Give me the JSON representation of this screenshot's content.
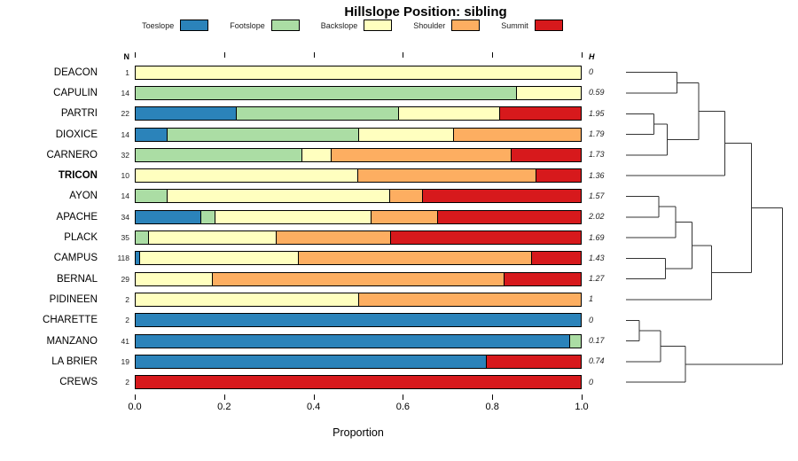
{
  "chart_data": {
    "type": "bar",
    "stacked": true,
    "orientation": "horizontal",
    "title": "Hillslope Position: sibling",
    "xlabel": "Proportion",
    "xlim": [
      0,
      1
    ],
    "grid": false,
    "legend_position": "top",
    "headers": {
      "n": "N",
      "h": "H"
    },
    "series_labels": [
      "Toeslope",
      "Footslope",
      "Backslope",
      "Shoulder",
      "Summit"
    ],
    "series_colors": [
      "#2B83BA",
      "#ABDDA4",
      "#FFFFBF",
      "#FDAE61",
      "#D7191C"
    ],
    "x_ticks": [
      {
        "label": "0.0",
        "v": 0.0
      },
      {
        "label": "0.2",
        "v": 0.2
      },
      {
        "label": "0.4",
        "v": 0.4
      },
      {
        "label": "0.6",
        "v": 0.6
      },
      {
        "label": "0.8",
        "v": 0.8
      },
      {
        "label": "1.0",
        "v": 1.0
      }
    ],
    "rows": [
      {
        "name": "DEACON",
        "n": 1,
        "h": "0",
        "bold": false,
        "proportions": [
          0,
          0,
          1,
          0,
          0
        ]
      },
      {
        "name": "CAPULIN",
        "n": 14,
        "h": "0.59",
        "bold": false,
        "proportions": [
          0,
          0.857,
          0.143,
          0,
          0
        ]
      },
      {
        "name": "PARTRI",
        "n": 22,
        "h": "1.95",
        "bold": false,
        "proportions": [
          0.227,
          0.364,
          0.227,
          0,
          0.182
        ]
      },
      {
        "name": "DIOXICE",
        "n": 14,
        "h": "1.79",
        "bold": false,
        "proportions": [
          0.071,
          0.429,
          0.214,
          0.286,
          0
        ]
      },
      {
        "name": "CARNERO",
        "n": 32,
        "h": "1.73",
        "bold": false,
        "proportions": [
          0,
          0.375,
          0.063,
          0.406,
          0.156
        ]
      },
      {
        "name": "TRICON",
        "n": 10,
        "h": "1.36",
        "bold": true,
        "proportions": [
          0,
          0,
          0.5,
          0.4,
          0.1
        ]
      },
      {
        "name": "AYON",
        "n": 14,
        "h": "1.57",
        "bold": false,
        "proportions": [
          0,
          0.071,
          0.5,
          0.071,
          0.357
        ]
      },
      {
        "name": "APACHE",
        "n": 34,
        "h": "2.02",
        "bold": false,
        "proportions": [
          0.147,
          0.029,
          0.353,
          0.147,
          0.324
        ]
      },
      {
        "name": "PLACK",
        "n": 35,
        "h": "1.69",
        "bold": false,
        "proportions": [
          0,
          0.029,
          0.286,
          0.257,
          0.429
        ]
      },
      {
        "name": "CAMPUS",
        "n": 118,
        "h": "1.43",
        "bold": false,
        "proportions": [
          0.008,
          0,
          0.356,
          0.525,
          0.11
        ]
      },
      {
        "name": "BERNAL",
        "n": 29,
        "h": "1.27",
        "bold": false,
        "proportions": [
          0,
          0,
          0.172,
          0.655,
          0.172
        ]
      },
      {
        "name": "PIDINEEN",
        "n": 2,
        "h": "1",
        "bold": false,
        "proportions": [
          0,
          0,
          0.5,
          0.5,
          0
        ]
      },
      {
        "name": "CHARETTE",
        "n": 2,
        "h": "0",
        "bold": false,
        "proportions": [
          1,
          0,
          0,
          0,
          0
        ]
      },
      {
        "name": "MANZANO",
        "n": 41,
        "h": "0.17",
        "bold": false,
        "proportions": [
          0.976,
          0.024,
          0,
          0,
          0
        ]
      },
      {
        "name": "LA BRIER",
        "n": 19,
        "h": "0.74",
        "bold": false,
        "proportions": [
          0.789,
          0,
          0,
          0,
          0.211
        ]
      },
      {
        "name": "CREWS",
        "n": 2,
        "h": "0",
        "bold": false,
        "proportions": [
          0,
          0,
          0,
          0,
          1
        ]
      }
    ],
    "dendrogram": {
      "h": 0.95,
      "children": [
        {
          "h": 0.76,
          "children": [
            {
              "h": 0.6,
              "children": [
                {
                  "h": 0.44,
                  "children": [
                    {
                      "h": 0.31,
                      "children": [
                        {
                          "leaf": "DEACON"
                        },
                        {
                          "leaf": "CAPULIN"
                        }
                      ]
                    },
                    {
                      "h": 0.25,
                      "children": [
                        {
                          "h": 0.17,
                          "children": [
                            {
                              "leaf": "PARTRI"
                            },
                            {
                              "leaf": "DIOXICE"
                            }
                          ]
                        },
                        {
                          "leaf": "CARNERO"
                        }
                      ]
                    }
                  ]
                },
                {
                  "leaf": "TRICON"
                }
              ]
            },
            {
              "h": 0.52,
              "children": [
                {
                  "h": 0.4,
                  "children": [
                    {
                      "h": 0.3,
                      "children": [
                        {
                          "h": 0.2,
                          "children": [
                            {
                              "leaf": "AYON"
                            },
                            {
                              "leaf": "APACHE"
                            }
                          ]
                        },
                        {
                          "leaf": "PLACK"
                        }
                      ]
                    },
                    {
                      "h": 0.24,
                      "children": [
                        {
                          "leaf": "CAMPUS"
                        },
                        {
                          "leaf": "BERNAL"
                        }
                      ]
                    }
                  ]
                },
                {
                  "leaf": "PIDINEEN"
                }
              ]
            }
          ]
        },
        {
          "h": 0.36,
          "children": [
            {
              "h": 0.21,
              "children": [
                {
                  "h": 0.08,
                  "children": [
                    {
                      "leaf": "CHARETTE"
                    },
                    {
                      "leaf": "MANZANO"
                    }
                  ]
                },
                {
                  "leaf": "LA BRIER"
                }
              ]
            },
            {
              "leaf": "CREWS"
            }
          ]
        }
      ]
    }
  }
}
